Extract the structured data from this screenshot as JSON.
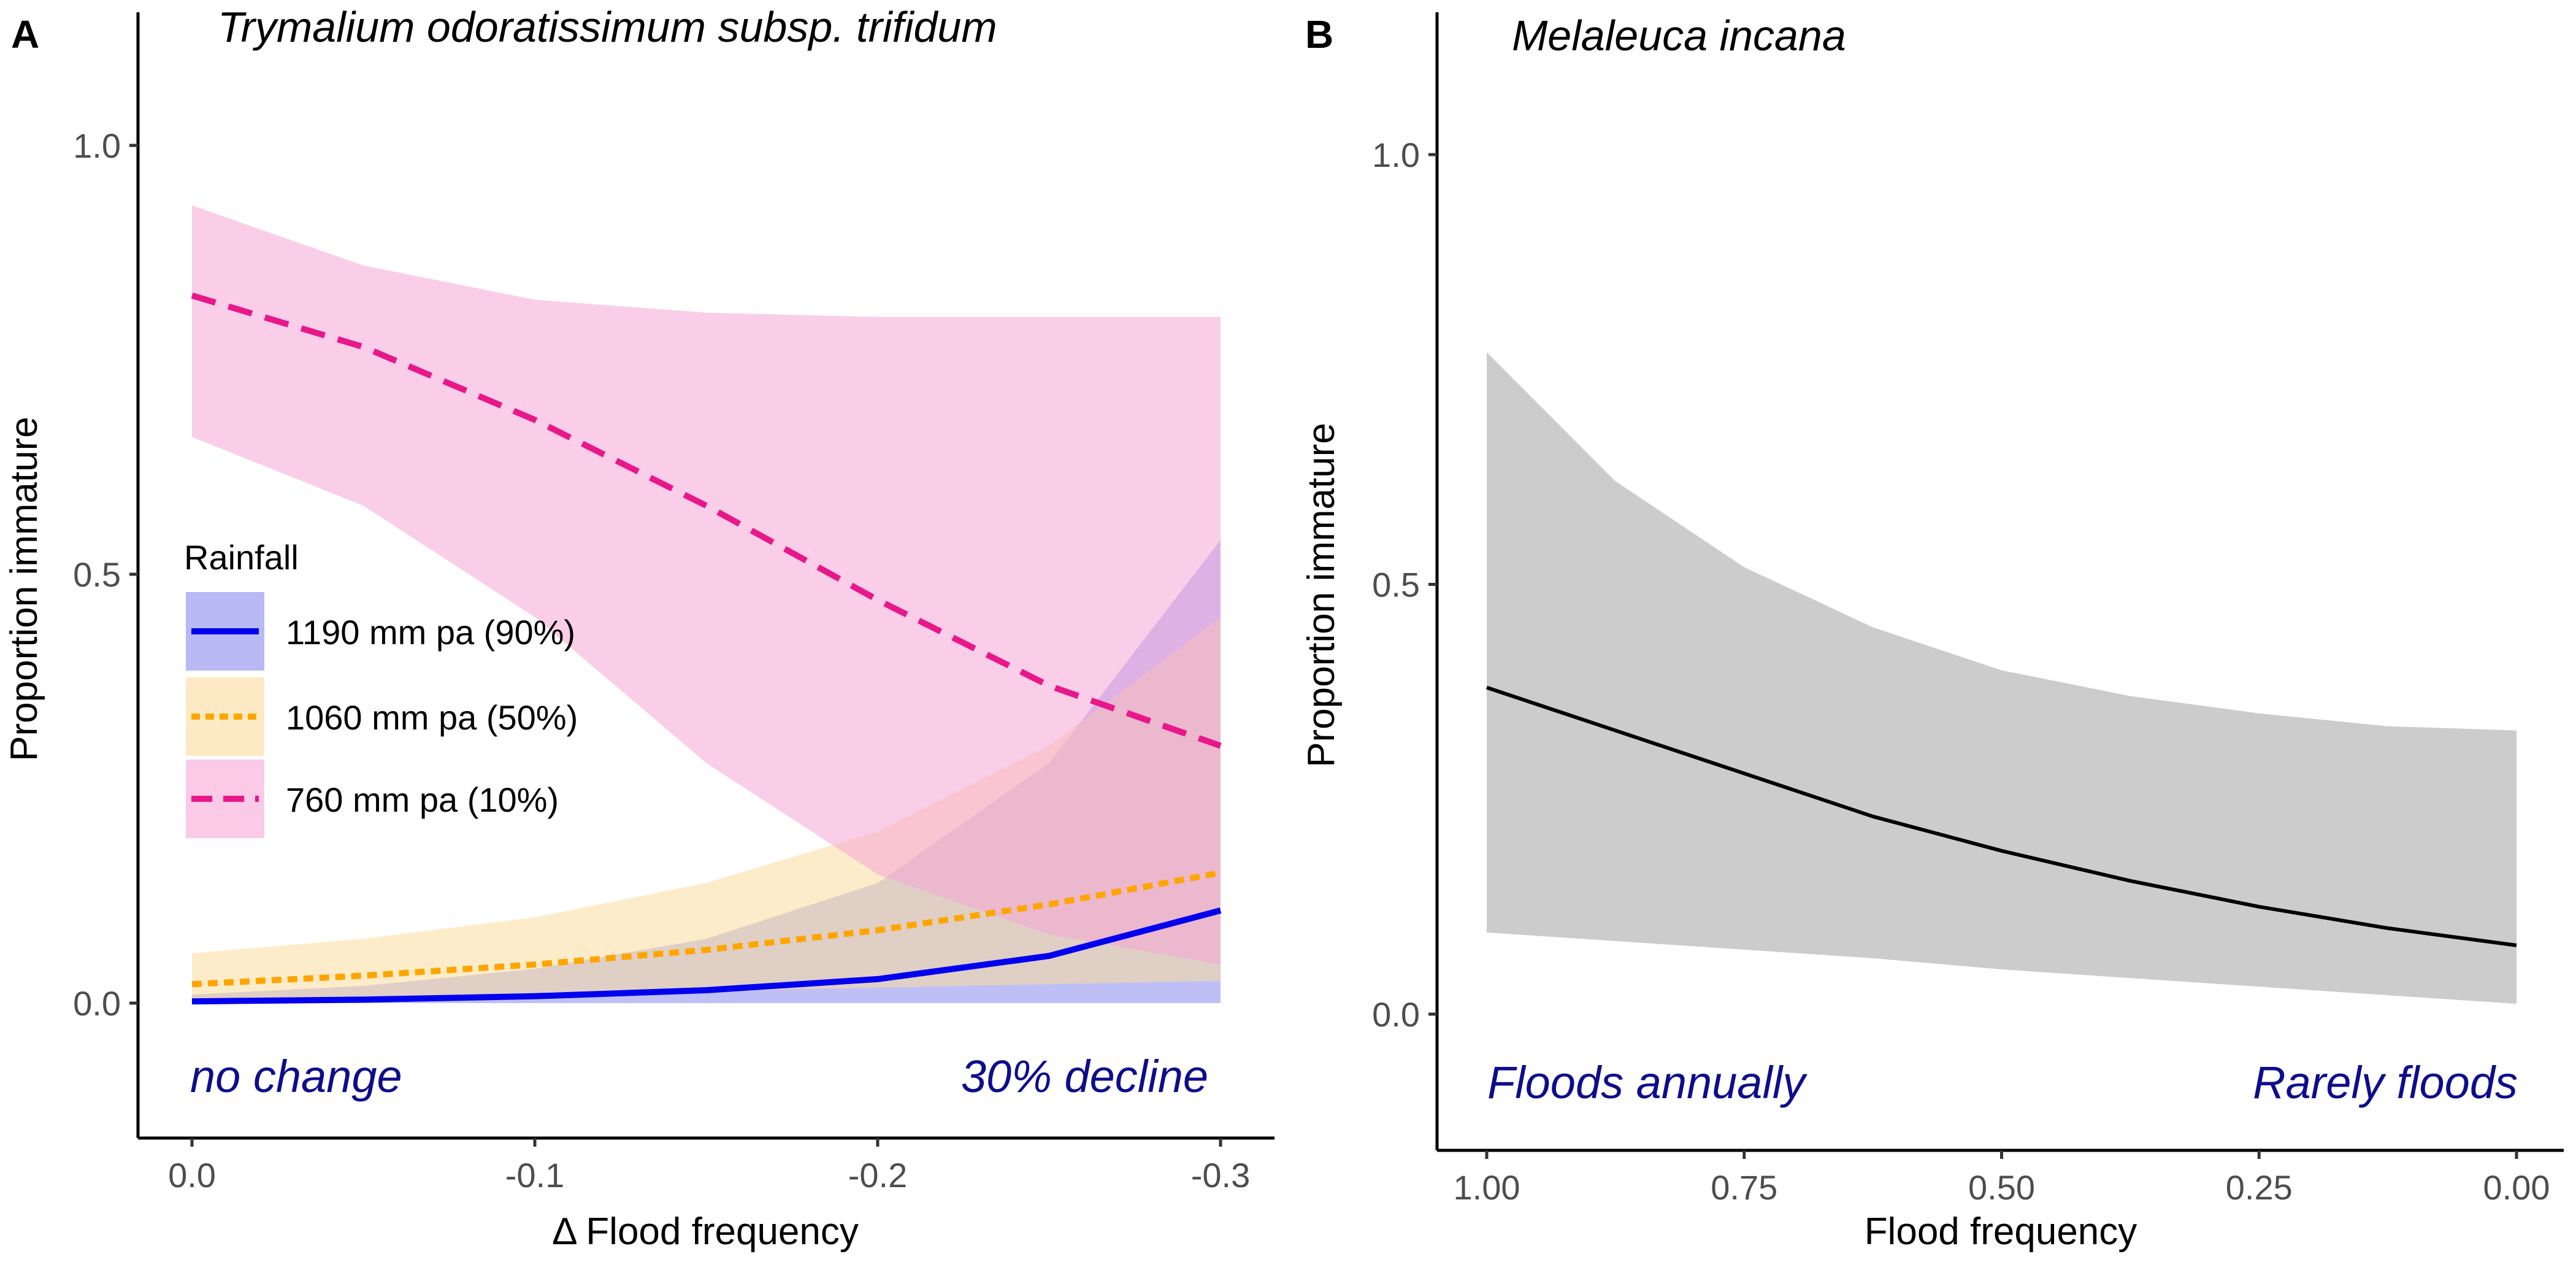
{
  "chart_data": [
    {
      "panel_letter": "A",
      "type": "line",
      "title": "Trymalium odoratissimum subsp. trifidum",
      "xlabel": "Δ Flood frequency",
      "ylabel": "Proportion immature",
      "xlim": [
        0.0,
        -0.3
      ],
      "ylim": [
        -0.15,
        1.12
      ],
      "x_ticks": [
        0.0,
        -0.1,
        -0.2,
        -0.3
      ],
      "x_tick_labels": [
        "0.0",
        "-0.1",
        "-0.2",
        "-0.3"
      ],
      "y_ticks": [
        0.0,
        0.5,
        1.0
      ],
      "y_tick_labels": [
        "0.0",
        "0.5",
        "1.0"
      ],
      "x": [
        0.0,
        -0.05,
        -0.1,
        -0.15,
        -0.2,
        -0.25,
        -0.3
      ],
      "legend_title": "Rainfall",
      "legend_position": "middle-left",
      "series": [
        {
          "name": "1190 mm pa (90%)",
          "line_color": "#0000ee",
          "fill_color": "#8a8af0",
          "line_style": "solid",
          "values": [
            0.002,
            0.004,
            0.008,
            0.015,
            0.028,
            0.055,
            0.108
          ],
          "lower": [
            0.0,
            0.0,
            0.0,
            0.0,
            0.0,
            0.0,
            0.0
          ],
          "upper": [
            0.01,
            0.02,
            0.04,
            0.075,
            0.14,
            0.28,
            0.54
          ]
        },
        {
          "name": "1060 mm pa (50%)",
          "line_color": "#ffa500",
          "fill_color": "#fbdc9c",
          "line_style": "dotted",
          "values": [
            0.022,
            0.032,
            0.045,
            0.062,
            0.085,
            0.115,
            0.152
          ],
          "lower": [
            0.005,
            0.008,
            0.011,
            0.014,
            0.018,
            0.022,
            0.026
          ],
          "upper": [
            0.058,
            0.075,
            0.1,
            0.14,
            0.2,
            0.3,
            0.45
          ]
        },
        {
          "name": "760 mm pa (10%)",
          "line_color": "#e8178a",
          "fill_color": "#f6a6d6",
          "line_style": "dashed",
          "values": [
            0.825,
            0.765,
            0.68,
            0.58,
            0.47,
            0.37,
            0.3
          ],
          "lower": [
            0.66,
            0.58,
            0.45,
            0.28,
            0.15,
            0.08,
            0.045
          ],
          "upper": [
            0.93,
            0.86,
            0.82,
            0.805,
            0.8,
            0.8,
            0.8
          ]
        }
      ],
      "annotations": [
        "no change",
        "30% decline"
      ]
    },
    {
      "panel_letter": "B",
      "type": "line",
      "title": "Melaleuca incana",
      "xlabel": "Flood frequency",
      "ylabel": "Proportion immature",
      "xlim": [
        1.05,
        -0.05
      ],
      "ylim": [
        -0.15,
        1.15
      ],
      "x_ticks": [
        1.0,
        0.75,
        0.5,
        0.25,
        0.0
      ],
      "x_tick_labels": [
        "1.00",
        "0.75",
        "0.50",
        "0.25",
        "0.00"
      ],
      "y_ticks": [
        0.0,
        0.5,
        1.0
      ],
      "y_tick_labels": [
        "0.0",
        "0.5",
        "1.0"
      ],
      "x": [
        1.0,
        0.875,
        0.75,
        0.625,
        0.5,
        0.375,
        0.25,
        0.125,
        0.0
      ],
      "series": [
        {
          "name": "Melaleuca incana",
          "line_color": "#000000",
          "fill_color": "#cccccc",
          "line_style": "solid",
          "values": [
            0.38,
            0.33,
            0.28,
            0.23,
            0.19,
            0.155,
            0.125,
            0.1,
            0.08
          ],
          "lower": [
            0.095,
            0.085,
            0.075,
            0.065,
            0.052,
            0.042,
            0.032,
            0.022,
            0.012
          ],
          "upper": [
            0.77,
            0.62,
            0.52,
            0.45,
            0.4,
            0.37,
            0.35,
            0.335,
            0.33
          ]
        }
      ],
      "annotations": [
        "Floods annually",
        "Rarely floods"
      ]
    }
  ]
}
